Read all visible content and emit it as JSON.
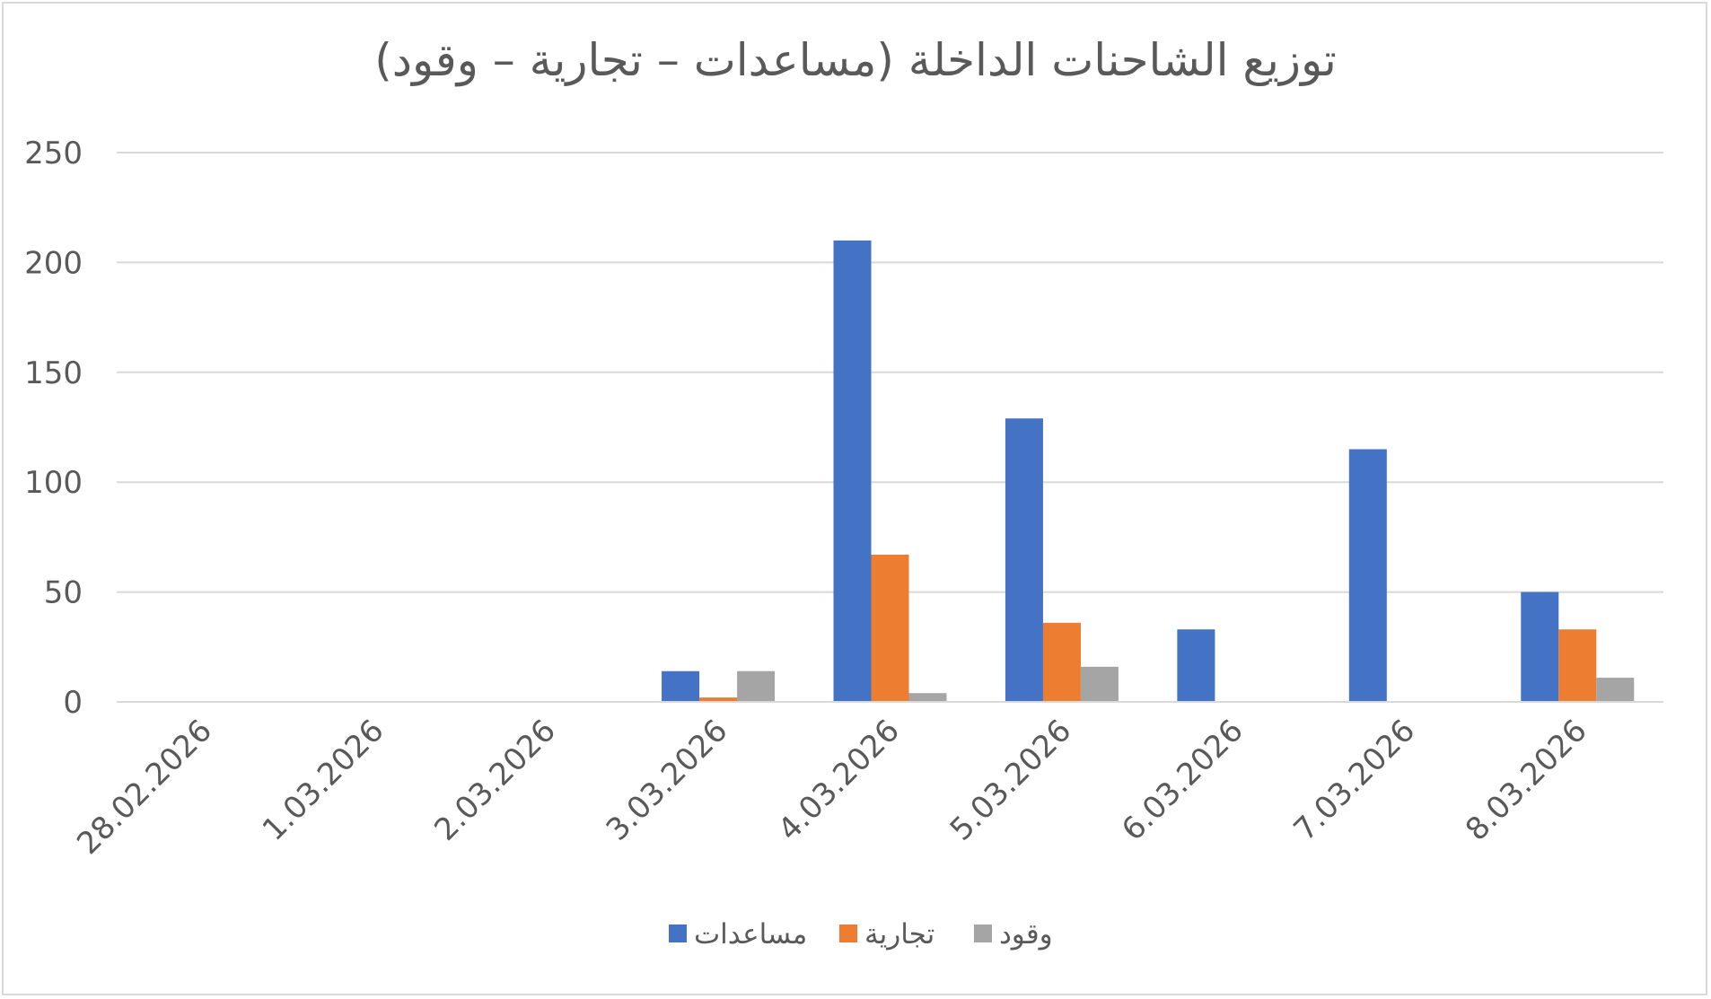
{
  "chart_data": {
    "type": "bar",
    "title": "توزيع الشاحنات الداخلة (مساعدات – تجارية – وقود)",
    "xlabel": "",
    "ylabel": "",
    "categories": [
      "28.02.2026",
      "1.03.2026",
      "2.03.2026",
      "3.03.2026",
      "4.03.2026",
      "5.03.2026",
      "6.03.2026",
      "7.03.2026",
      "8.03.2026"
    ],
    "series": [
      {
        "name": "مساعدات",
        "color": "#4472c4",
        "values": [
          0,
          0,
          0,
          14,
          210,
          129,
          33,
          115,
          50
        ]
      },
      {
        "name": "تجارية",
        "color": "#ed7d31",
        "values": [
          0,
          0,
          0,
          2,
          67,
          36,
          0,
          0,
          33
        ]
      },
      {
        "name": "وقود",
        "color": "#a5a5a5",
        "values": [
          0,
          0,
          0,
          14,
          4,
          16,
          0,
          0,
          11
        ]
      }
    ],
    "ylim": [
      0,
      250
    ],
    "yticks": [
      0,
      50,
      100,
      150,
      200,
      250
    ],
    "grid": true,
    "legend": "bottom"
  }
}
